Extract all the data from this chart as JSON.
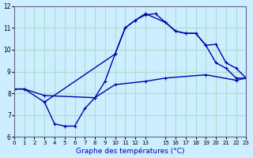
{
  "xlabel": "Graphe des températures (°C)",
  "background_color": "#cceeff",
  "grid_color": "#aaddcc",
  "line_color": "#0000aa",
  "xlim": [
    0,
    23
  ],
  "ylim": [
    6,
    12
  ],
  "xticks": [
    0,
    1,
    2,
    3,
    4,
    5,
    6,
    7,
    8,
    9,
    10,
    11,
    12,
    13,
    15,
    16,
    17,
    18,
    19,
    20,
    21,
    22,
    23
  ],
  "yticks": [
    6,
    7,
    8,
    9,
    10,
    11,
    12
  ],
  "line1_x": [
    0,
    1,
    3,
    10,
    11,
    12,
    13,
    14,
    15,
    16,
    17,
    18,
    19,
    20,
    21,
    22,
    23
  ],
  "line1_y": [
    8.2,
    8.2,
    7.6,
    9.8,
    11.0,
    11.35,
    11.6,
    11.65,
    11.25,
    10.85,
    10.75,
    10.75,
    10.2,
    9.4,
    9.15,
    8.7,
    8.7
  ],
  "line2_x": [
    0,
    1,
    3,
    8,
    10,
    13,
    15,
    19,
    22,
    23
  ],
  "line2_y": [
    8.2,
    8.2,
    7.9,
    7.8,
    8.4,
    8.55,
    8.7,
    8.85,
    8.6,
    8.7
  ],
  "line3_x": [
    3,
    4,
    5,
    6,
    7,
    8,
    9,
    10,
    11,
    12,
    13,
    15,
    16,
    17,
    18,
    19,
    20,
    21,
    22,
    23
  ],
  "line3_y": [
    7.6,
    6.6,
    6.5,
    6.5,
    7.3,
    7.8,
    8.55,
    9.8,
    11.0,
    11.35,
    11.65,
    11.25,
    10.85,
    10.75,
    10.75,
    10.2,
    10.25,
    9.4,
    9.15,
    8.7
  ]
}
